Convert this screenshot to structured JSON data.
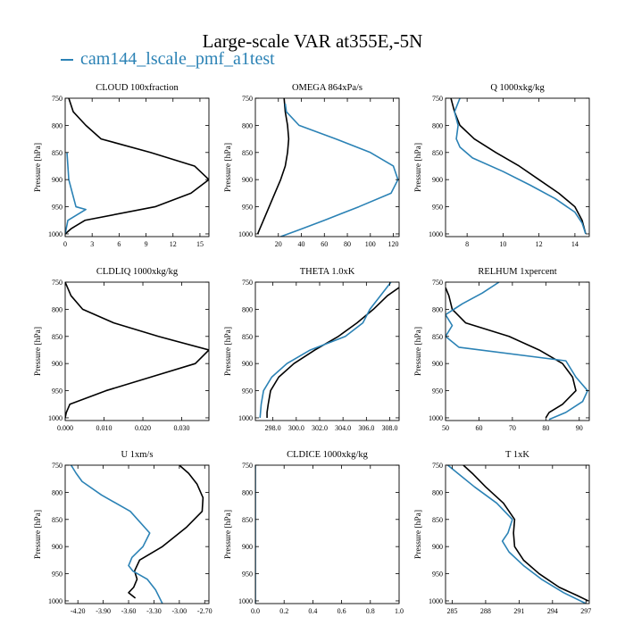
{
  "title": "Large-scale VAR at355E,-5N",
  "legend": {
    "label": "cam144_lscale_pmf_a1test",
    "color": "#2b82b5"
  },
  "colors": {
    "black_series": "#000000",
    "blue_series": "#2b82b5"
  },
  "chart_data": [
    {
      "type": "line",
      "title": "CLOUD  100xfraction",
      "xlabel": "",
      "ylabel": "Pressure [hPa]",
      "xlim": [
        0,
        16
      ],
      "ylim": [
        1005,
        750
      ],
      "grid": false,
      "xticks": [
        0,
        3,
        6,
        9,
        12,
        15
      ],
      "xticklabels": [
        "0",
        "3",
        "6",
        "9",
        "12",
        "15"
      ],
      "yticks": [
        750,
        800,
        850,
        900,
        950,
        1000
      ],
      "yticklabels": [
        "750",
        "800",
        "850",
        "900",
        "950",
        "1000"
      ],
      "series": [
        {
          "color": "#000000",
          "x": [
            0.4,
            0.9,
            2.3,
            4.0,
            9.5,
            14.4,
            16.0,
            14.0,
            10.0,
            2.2,
            0.7,
            0.0
          ],
          "y": [
            750,
            775,
            800,
            825,
            850,
            875,
            900,
            925,
            950,
            975,
            990,
            1000
          ]
        },
        {
          "color": "#2b82b5",
          "x": [
            0.2,
            0.3,
            0.4,
            0.8,
            1.2,
            2.3,
            1.3,
            0.3,
            0.0
          ],
          "y": [
            850,
            875,
            900,
            925,
            950,
            955,
            965,
            975,
            1000
          ]
        }
      ]
    },
    {
      "type": "line",
      "title": "OMEGA  864xPa/s",
      "xlabel": "",
      "ylabel": "Pressure [hPa]",
      "xlim": [
        0,
        125
      ],
      "ylim": [
        1005,
        750
      ],
      "grid": false,
      "xticks": [
        20,
        40,
        60,
        80,
        100,
        120
      ],
      "xticklabels": [
        "20",
        "40",
        "60",
        "80",
        "100",
        "120"
      ],
      "yticks": [
        750,
        800,
        850,
        900,
        950,
        1000
      ],
      "yticklabels": [
        "750",
        "800",
        "850",
        "900",
        "950",
        "1000"
      ],
      "series": [
        {
          "color": "#000000",
          "x": [
            25,
            26,
            28,
            29,
            28,
            26,
            22,
            17,
            12,
            7,
            2
          ],
          "y": [
            750,
            775,
            800,
            825,
            850,
            875,
            900,
            925,
            950,
            975,
            1000
          ]
        },
        {
          "color": "#2b82b5",
          "x": [
            26,
            27,
            38,
            70,
            100,
            120,
            124,
            118,
            90,
            60,
            35,
            22
          ],
          "y": [
            760,
            775,
            800,
            825,
            850,
            875,
            900,
            925,
            950,
            975,
            995,
            1005
          ]
        }
      ]
    },
    {
      "type": "line",
      "title": "Q  1000xkg/kg",
      "xlabel": "",
      "ylabel": "Pressure [hPa]",
      "xlim": [
        6.8,
        14.8
      ],
      "ylim": [
        1005,
        750
      ],
      "grid": false,
      "xticks": [
        8,
        10,
        12,
        14
      ],
      "xticklabels": [
        "8",
        "10",
        "12",
        "14"
      ],
      "yticks": [
        750,
        800,
        850,
        900,
        950,
        1000
      ],
      "yticklabels": [
        "750",
        "800",
        "850",
        "900",
        "950",
        "1000"
      ],
      "series": [
        {
          "color": "#000000",
          "x": [
            7.1,
            7.3,
            7.6,
            8.4,
            9.6,
            10.9,
            12.0,
            13.1,
            14.0,
            14.4,
            14.6
          ],
          "y": [
            750,
            775,
            800,
            825,
            850,
            875,
            900,
            925,
            950,
            975,
            1000
          ]
        },
        {
          "color": "#2b82b5",
          "x": [
            7.6,
            7.3,
            7.5,
            7.4,
            7.6,
            8.3,
            10.0,
            11.5,
            12.9,
            14.0,
            14.4,
            14.6
          ],
          "y": [
            750,
            775,
            800,
            825,
            840,
            860,
            885,
            910,
            935,
            960,
            980,
            1000
          ]
        }
      ]
    },
    {
      "type": "line",
      "title": "CLDLIQ  1000xkg/kg",
      "xlabel": "",
      "ylabel": "Pressure [hPa]",
      "xlim": [
        0,
        0.037
      ],
      "ylim": [
        1005,
        750
      ],
      "grid": false,
      "xticks": [
        0.0,
        0.01,
        0.02,
        0.03
      ],
      "xticklabels": [
        "0.000",
        "0.010",
        "0.020",
        "0.030"
      ],
      "yticks": [
        750,
        800,
        850,
        900,
        950,
        1000
      ],
      "yticklabels": [
        "750",
        "800",
        "850",
        "900",
        "950",
        "1000"
      ],
      "series": [
        {
          "color": "#000000",
          "x": [
            0.0,
            0.0015,
            0.0045,
            0.0125,
            0.024,
            0.037,
            0.0335,
            0.022,
            0.0105,
            0.0012,
            0.0003,
            0.0
          ],
          "y": [
            750,
            775,
            800,
            825,
            850,
            875,
            900,
            925,
            950,
            975,
            990,
            1000
          ]
        }
      ]
    },
    {
      "type": "line",
      "title": "THETA  1.0xK",
      "xlabel": "",
      "ylabel": "Pressure [hPa]",
      "xlim": [
        296.5,
        308.8
      ],
      "ylim": [
        1005,
        750
      ],
      "grid": false,
      "xticks": [
        298,
        300,
        302,
        304,
        306,
        308
      ],
      "xticklabels": [
        "298.0",
        "300.0",
        "302.0",
        "304.0",
        "306.0",
        "308.0"
      ],
      "yticks": [
        750,
        800,
        850,
        900,
        950,
        1000
      ],
      "yticklabels": [
        "750",
        "800",
        "850",
        "900",
        "950",
        "1000"
      ],
      "series": [
        {
          "color": "#000000",
          "x": [
            308.8,
            307.8,
            306.6,
            305.2,
            303.6,
            301.6,
            299.8,
            298.5,
            297.8,
            297.6,
            297.5,
            297.5
          ],
          "y": [
            760,
            775,
            800,
            825,
            850,
            875,
            900,
            925,
            950,
            975,
            990,
            1000
          ]
        },
        {
          "color": "#2b82b5",
          "x": [
            308.1,
            307.2,
            306.3,
            305.7,
            304.2,
            301.2,
            299.2,
            297.9,
            297.2,
            297.0,
            296.9
          ],
          "y": [
            750,
            775,
            800,
            825,
            850,
            875,
            900,
            925,
            950,
            975,
            1000
          ]
        }
      ]
    },
    {
      "type": "line",
      "title": "RELHUM  1xpercent",
      "xlabel": "",
      "ylabel": "Pressure [hPa]",
      "xlim": [
        50,
        93
      ],
      "ylim": [
        1005,
        750
      ],
      "grid": false,
      "xticks": [
        50,
        60,
        70,
        80,
        90
      ],
      "xticklabels": [
        "50",
        "60",
        "70",
        "80",
        "90"
      ],
      "yticks": [
        750,
        800,
        850,
        900,
        950,
        1000
      ],
      "yticklabels": [
        "750",
        "800",
        "850",
        "900",
        "950",
        "1000"
      ],
      "series": [
        {
          "color": "#000000",
          "x": [
            50,
            51,
            52,
            56,
            69,
            78,
            85,
            88,
            89,
            85,
            81,
            80
          ],
          "y": [
            760,
            775,
            800,
            825,
            850,
            875,
            900,
            925,
            950,
            975,
            990,
            1000
          ]
        },
        {
          "color": "#2b82b5",
          "x": [
            66,
            61,
            55,
            50,
            52,
            50,
            54,
            86,
            89,
            92.5,
            91,
            86,
            81
          ],
          "y": [
            750,
            770,
            790,
            810,
            830,
            850,
            870,
            895,
            925,
            950,
            970,
            990,
            1003
          ]
        }
      ]
    },
    {
      "type": "line",
      "title": "U  1xm/s",
      "xlabel": "",
      "ylabel": "Pressure [hPa]",
      "xlim": [
        -4.35,
        -2.65
      ],
      "ylim": [
        1005,
        750
      ],
      "grid": false,
      "xticks": [
        -4.2,
        -3.9,
        -3.6,
        -3.3,
        -3.0,
        -2.7
      ],
      "xticklabels": [
        "-4.20",
        "-3.90",
        "-3.60",
        "-3.30",
        "-3.00",
        "-2.70"
      ],
      "yticks": [
        750,
        800,
        850,
        900,
        950,
        1000
      ],
      "yticklabels": [
        "750",
        "800",
        "850",
        "900",
        "950",
        "1000"
      ],
      "series": [
        {
          "color": "#000000",
          "x": [
            -3.0,
            -2.89,
            -2.79,
            -2.72,
            -2.73,
            -2.92,
            -3.2,
            -3.47,
            -3.53,
            -3.5,
            -3.54,
            -3.6,
            -3.52
          ],
          "y": [
            750,
            765,
            785,
            810,
            835,
            865,
            900,
            925,
            945,
            960,
            975,
            985,
            995
          ]
        },
        {
          "color": "#2b82b5",
          "x": [
            -4.28,
            -4.22,
            -4.15,
            -3.92,
            -3.58,
            -3.35,
            -3.43,
            -3.56,
            -3.6,
            -3.55,
            -3.38,
            -3.28,
            -3.2
          ],
          "y": [
            750,
            765,
            780,
            805,
            835,
            875,
            900,
            920,
            935,
            945,
            960,
            980,
            1005
          ]
        }
      ]
    },
    {
      "type": "line",
      "title": "CLDICE  1000xkg/kg",
      "xlabel": "",
      "ylabel": "Pressure [hPa]",
      "xlim": [
        0,
        1
      ],
      "ylim": [
        1005,
        750
      ],
      "grid": false,
      "xticks": [
        0.0,
        0.2,
        0.4,
        0.6,
        0.8,
        1.0
      ],
      "xticklabels": [
        "0.0",
        "0.2",
        "0.4",
        "0.6",
        "0.8",
        "1.0"
      ],
      "yticks": [
        750,
        800,
        850,
        900,
        950,
        1000
      ],
      "yticklabels": [
        "750",
        "800",
        "850",
        "900",
        "950",
        "1000"
      ],
      "series": [
        {
          "color": "#2b82b5",
          "x": [
            0,
            0
          ],
          "y": [
            750,
            1005
          ]
        }
      ]
    },
    {
      "type": "line",
      "title": "T  1xK",
      "xlabel": "",
      "ylabel": "Pressure [hPa]",
      "xlim": [
        284.4,
        297.3
      ],
      "ylim": [
        1005,
        750
      ],
      "grid": false,
      "xticks": [
        285,
        288,
        291,
        294,
        297
      ],
      "xticklabels": [
        "285",
        "288",
        "291",
        "294",
        "297"
      ],
      "yticks": [
        750,
        800,
        850,
        900,
        950,
        1000
      ],
      "yticklabels": [
        "750",
        "800",
        "850",
        "900",
        "950",
        "1000"
      ],
      "series": [
        {
          "color": "#000000",
          "x": [
            286.0,
            286.8,
            288.0,
            289.6,
            290.6,
            290.5,
            290.6,
            291.4,
            292.8,
            294.6,
            296.2,
            297.2
          ],
          "y": [
            750,
            765,
            790,
            820,
            850,
            875,
            900,
            925,
            950,
            975,
            990,
            1000
          ]
        },
        {
          "color": "#2b82b5",
          "x": [
            284.6,
            285.5,
            287.0,
            289.0,
            290.4,
            290.0,
            289.5,
            290.1,
            291.4,
            293.0,
            295.0,
            297.0
          ],
          "y": [
            750,
            765,
            790,
            820,
            850,
            875,
            890,
            910,
            935,
            960,
            985,
            1005
          ]
        }
      ]
    }
  ]
}
